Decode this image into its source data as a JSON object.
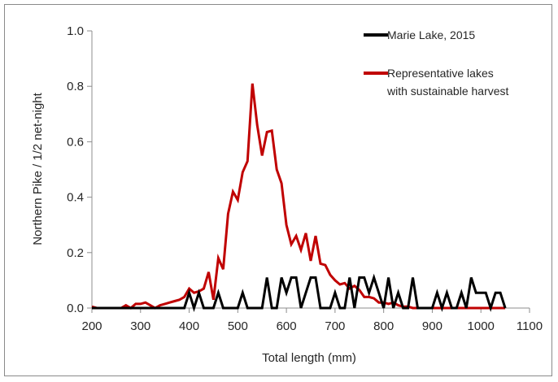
{
  "chart_data": {
    "type": "line",
    "title": "",
    "xlabel": "Total length (mm)",
    "ylabel": "Northern Pike / 1/2 net-night",
    "xlim": [
      200,
      1100
    ],
    "ylim": [
      0.0,
      1.0
    ],
    "x_ticks": [
      "200",
      "300",
      "400",
      "500",
      "600",
      "700",
      "800",
      "900",
      "1000",
      "1100"
    ],
    "y_ticks": [
      "0.0",
      "0.2",
      "0.4",
      "0.6",
      "0.8",
      "1.0"
    ],
    "grid": false,
    "legend_position": "top-right",
    "series": [
      {
        "name": "Marie Lake, 2015",
        "color": "#000000",
        "x": [
          200,
          210,
          220,
          230,
          240,
          250,
          260,
          270,
          280,
          290,
          300,
          310,
          320,
          330,
          340,
          350,
          360,
          370,
          380,
          390,
          400,
          410,
          420,
          430,
          440,
          450,
          460,
          470,
          480,
          490,
          500,
          510,
          520,
          530,
          540,
          550,
          560,
          570,
          580,
          590,
          600,
          610,
          620,
          630,
          640,
          650,
          660,
          670,
          680,
          690,
          700,
          710,
          720,
          730,
          740,
          750,
          760,
          770,
          780,
          790,
          800,
          810,
          820,
          830,
          840,
          850,
          860,
          870,
          880,
          890,
          900,
          910,
          920,
          930,
          940,
          950,
          960,
          970,
          980,
          990,
          1000,
          1010,
          1020,
          1030,
          1040,
          1050
        ],
        "values": [
          0,
          0,
          0,
          0,
          0,
          0,
          0,
          0,
          0,
          0,
          0,
          0,
          0,
          0,
          0,
          0,
          0,
          0,
          0,
          0,
          0.055,
          0,
          0.055,
          0,
          0,
          0,
          0.055,
          0,
          0,
          0,
          0,
          0.055,
          0,
          0,
          0,
          0,
          0.11,
          0,
          0,
          0.11,
          0.055,
          0.11,
          0.11,
          0,
          0.055,
          0.11,
          0.11,
          0,
          0,
          0,
          0.055,
          0,
          0,
          0.11,
          0,
          0.11,
          0.11,
          0.055,
          0.11,
          0.055,
          0,
          0.11,
          0,
          0.055,
          0,
          0,
          0.11,
          0,
          0,
          0,
          0,
          0.055,
          0,
          0.055,
          0,
          0,
          0.055,
          0,
          0.11,
          0.055,
          0.055,
          0.055,
          0,
          0.055,
          0.055,
          0
        ]
      },
      {
        "name": "Representative lakes with sustainable harvest",
        "name_lines": [
          "Representative lakes",
          "with sustainable harvest"
        ],
        "color": "#c00000",
        "x": [
          200,
          210,
          220,
          230,
          240,
          250,
          260,
          270,
          280,
          290,
          300,
          310,
          320,
          330,
          340,
          350,
          360,
          370,
          380,
          390,
          400,
          410,
          420,
          430,
          440,
          450,
          460,
          470,
          480,
          490,
          500,
          510,
          520,
          530,
          540,
          550,
          560,
          570,
          580,
          590,
          600,
          610,
          620,
          630,
          640,
          650,
          660,
          670,
          680,
          690,
          700,
          710,
          720,
          730,
          740,
          750,
          760,
          770,
          780,
          790,
          800,
          810,
          820,
          830,
          840,
          850,
          860,
          870,
          880,
          890,
          900,
          910,
          920,
          930,
          940,
          950,
          960,
          970,
          980,
          990,
          1000,
          1010,
          1020,
          1030,
          1040,
          1050
        ],
        "values": [
          0.005,
          0,
          0,
          0,
          0,
          0,
          0,
          0.01,
          0,
          0.015,
          0.015,
          0.02,
          0.01,
          0,
          0.01,
          0.015,
          0.02,
          0.025,
          0.03,
          0.04,
          0.07,
          0.055,
          0.06,
          0.07,
          0.13,
          0.03,
          0.18,
          0.14,
          0.34,
          0.42,
          0.39,
          0.49,
          0.53,
          0.81,
          0.66,
          0.55,
          0.635,
          0.64,
          0.5,
          0.45,
          0.3,
          0.23,
          0.26,
          0.21,
          0.27,
          0.17,
          0.26,
          0.16,
          0.155,
          0.12,
          0.1,
          0.085,
          0.09,
          0.07,
          0.08,
          0.065,
          0.04,
          0.04,
          0.035,
          0.02,
          0.02,
          0.015,
          0.02,
          0.01,
          0.005,
          0.005,
          0,
          0,
          0,
          0,
          0,
          0,
          0,
          0,
          0,
          0,
          0,
          0,
          0,
          0,
          0,
          0,
          0,
          0,
          0,
          0
        ]
      }
    ]
  }
}
